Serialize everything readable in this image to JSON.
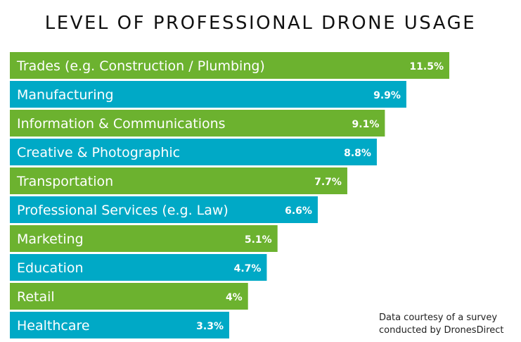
{
  "chart_data": {
    "type": "bar",
    "orientation": "horizontal",
    "title": "LEVEL OF PROFESSIONAL DRONE USAGE",
    "xlabel": "",
    "ylabel": "",
    "unit": "%",
    "grid": false,
    "legend": "none",
    "categories": [
      "Trades (e.g. Construction / Plumbing)",
      "Manufacturing",
      "Information & Communications",
      "Creative & Photographic",
      "Transportation",
      "Professional Services (e.g. Law)",
      "Marketing",
      "Education",
      "Retail",
      "Healthcare"
    ],
    "values": [
      11.5,
      9.9,
      9.1,
      8.8,
      7.7,
      6.6,
      5.1,
      4.7,
      4,
      3.3
    ],
    "value_labels": [
      "11.5%",
      "9.9%",
      "9.1%",
      "8.8%",
      "7.7%",
      "6.6%",
      "5.1%",
      "4.7%",
      "4%",
      "3.3%"
    ],
    "colors": [
      "#6cb22f",
      "#00a9c6"
    ],
    "annotation": "Data courtesy of a survey conducted by DronesDirect"
  },
  "source": {
    "line1": "Data courtesy of a survey",
    "line2": "conducted by DronesDirect"
  }
}
